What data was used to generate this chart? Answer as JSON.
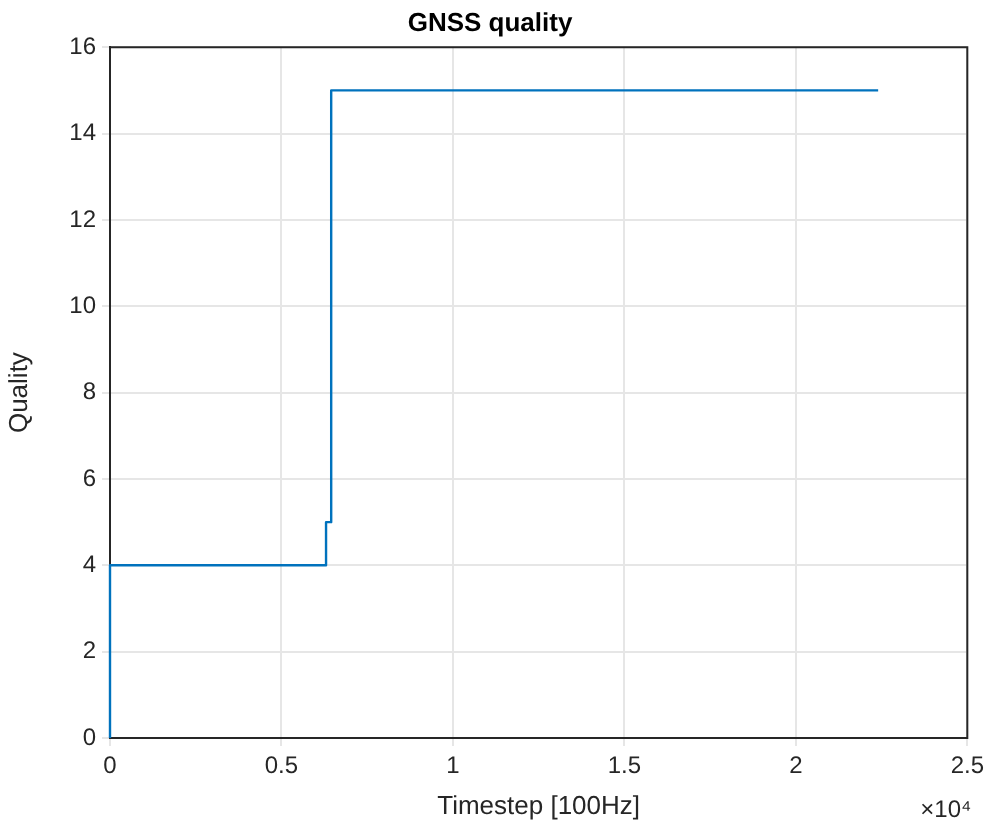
{
  "chart_data": {
    "type": "step",
    "title": "GNSS quality",
    "xlabel": "Timestep [100Hz]",
    "ylabel": "Quality",
    "x": [
      0,
      0,
      0.63,
      0.645,
      2.24
    ],
    "series": [
      {
        "color": "#0072bd",
        "values": [
          0,
          4,
          5,
          15,
          15
        ]
      }
    ],
    "xlim": [
      0,
      2.5
    ],
    "xticks": [
      0,
      0.5,
      1,
      1.5,
      2,
      2.5
    ],
    "ylim": [
      0,
      16
    ],
    "yticks": [
      0,
      2,
      4,
      6,
      8,
      10,
      12,
      14,
      16
    ],
    "grid": true,
    "legend": false,
    "annotations": [
      "×10⁴"
    ]
  }
}
